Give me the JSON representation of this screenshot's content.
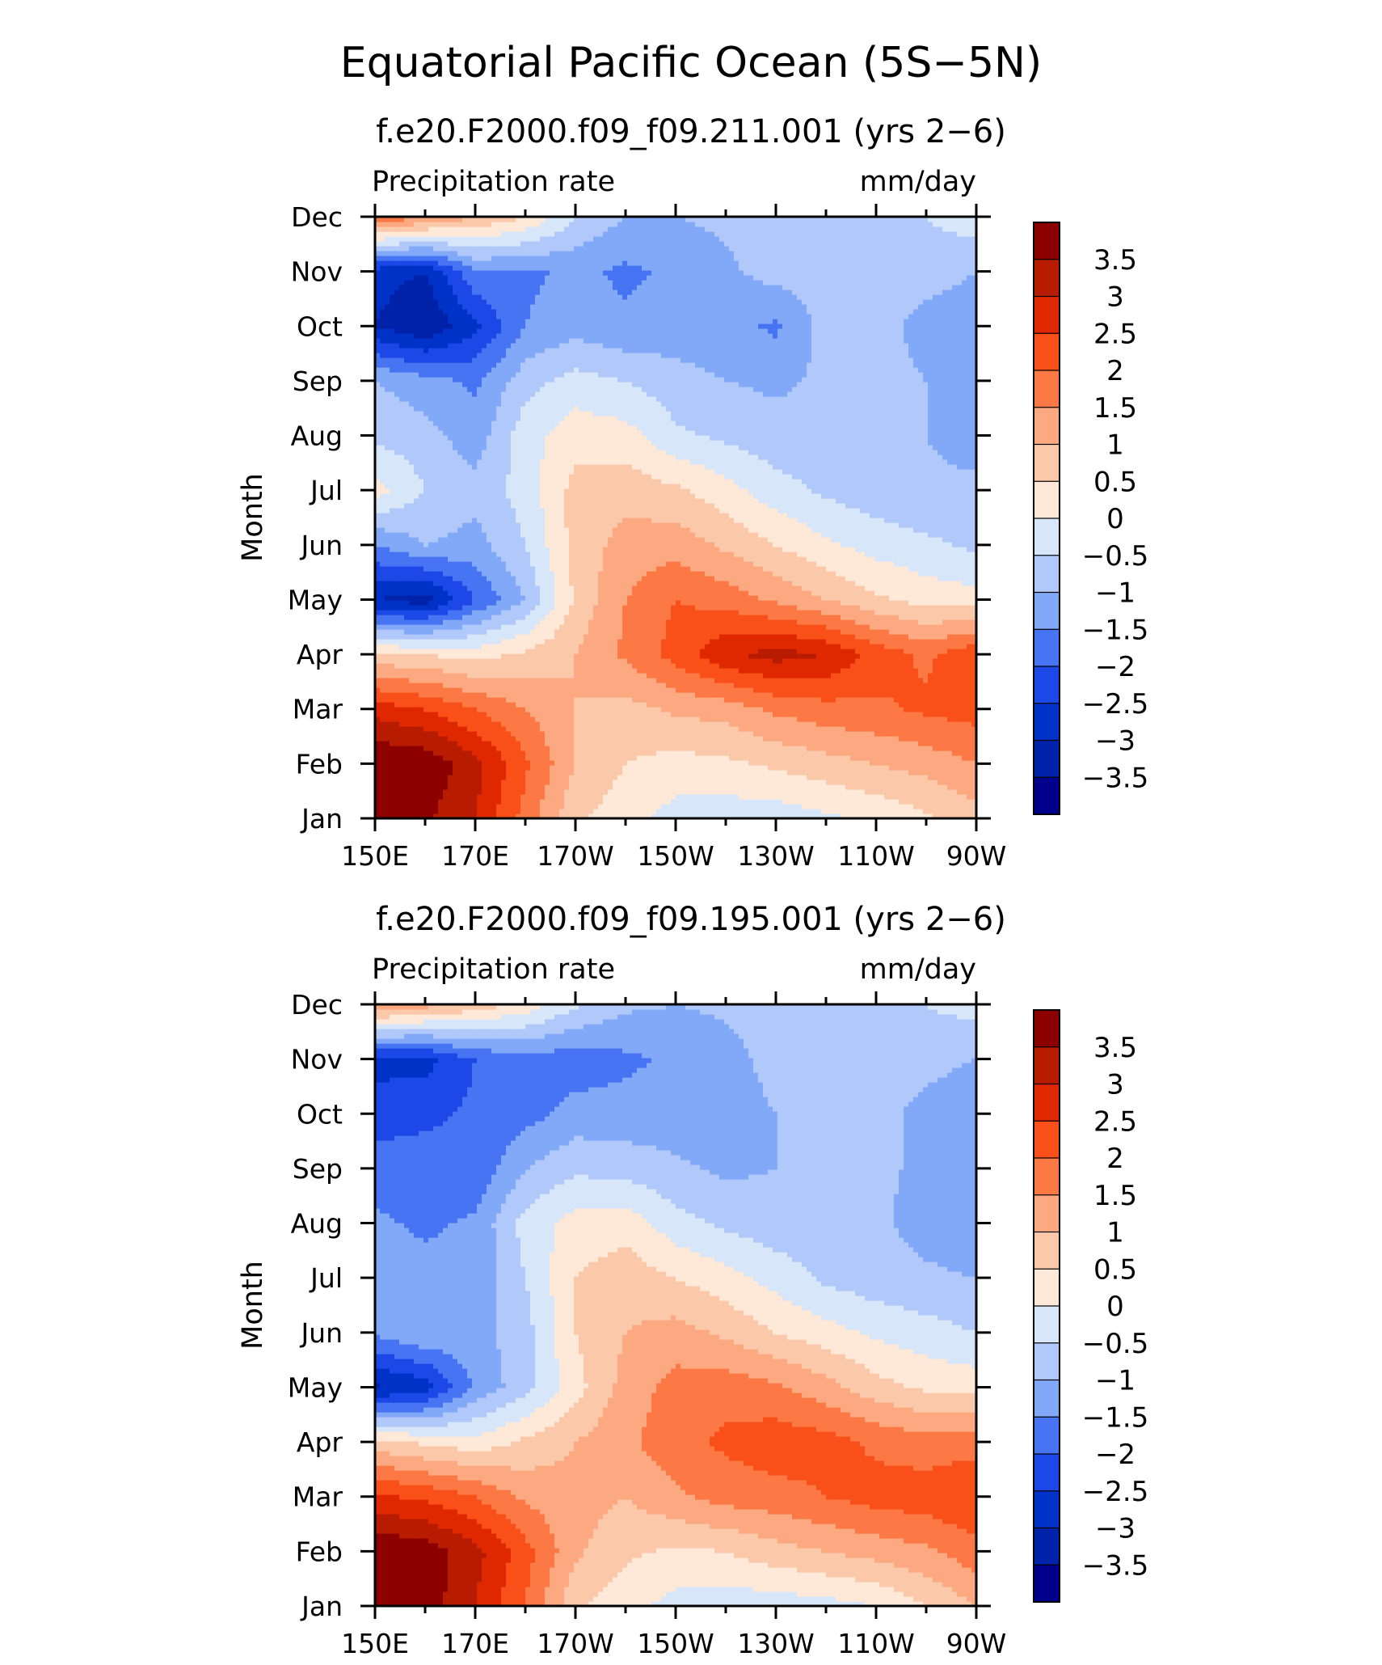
{
  "page_title": "Equatorial Pacific Ocean (5S−5N)",
  "chart_data": [
    {
      "type": "heatmap",
      "title": "f.e20.F2000.f09_f09.211.001 (yrs 2−6)",
      "variable": "Precipitation rate",
      "units": "mm/day",
      "xlabel": "",
      "ylabel": "Month",
      "x_ticks": [
        "150E",
        "170E",
        "170W",
        "150W",
        "130W",
        "110W",
        "90W"
      ],
      "x_lon": [
        150,
        160,
        170,
        180,
        190,
        200,
        210,
        220,
        230,
        240,
        250,
        260,
        270
      ],
      "y_ticks": [
        "Jan",
        "Feb",
        "Mar",
        "Apr",
        "May",
        "Jun",
        "Jul",
        "Aug",
        "Sep",
        "Oct",
        "Nov",
        "Dec"
      ],
      "colorbar_levels": [
        "3.5",
        "3",
        "2.5",
        "2",
        "1.5",
        "1",
        "0.5",
        "0",
        "−0.5",
        "−1",
        "−1.5",
        "−2",
        "−2.5",
        "−3",
        "−3.5"
      ],
      "z": [
        [
          4.0,
          3.6,
          3.0,
          1.8,
          0.6,
          0.2,
          -0.2,
          -0.3,
          -0.3,
          -0.1,
          0.1,
          0.4,
          0.8
        ],
        [
          4.0,
          3.9,
          3.2,
          2.1,
          1.0,
          0.5,
          0.3,
          0.4,
          0.6,
          0.8,
          1.0,
          1.2,
          1.5
        ],
        [
          2.8,
          2.5,
          2.0,
          1.5,
          1.0,
          0.8,
          1.1,
          1.2,
          1.6,
          1.8,
          1.9,
          2.1,
          2.2
        ],
        [
          0.6,
          0.5,
          0.3,
          0.6,
          1.0,
          1.6,
          2.2,
          2.9,
          3.2,
          3.0,
          2.3,
          1.9,
          2.4
        ],
        [
          -3.0,
          -3.3,
          -2.0,
          -1.0,
          0.6,
          1.5,
          2.0,
          1.8,
          1.4,
          1.0,
          0.6,
          0.3,
          0.2
        ],
        [
          -1.5,
          -1.0,
          -1.2,
          -0.5,
          0.7,
          1.2,
          1.3,
          0.9,
          0.5,
          0.1,
          -0.2,
          -0.4,
          -0.6
        ],
        [
          0.2,
          -0.5,
          -0.8,
          -0.3,
          0.7,
          0.8,
          0.6,
          0.2,
          -0.3,
          -0.6,
          -0.8,
          -0.9,
          -0.9
        ],
        [
          -0.6,
          -0.8,
          -1.3,
          -0.2,
          0.3,
          0.2,
          -0.4,
          -0.6,
          -0.8,
          -0.8,
          -0.8,
          -1.0,
          -1.2
        ],
        [
          -1.0,
          -1.3,
          -1.6,
          -0.7,
          -0.3,
          -0.5,
          -0.8,
          -1.0,
          -1.1,
          -0.9,
          -0.8,
          -1.0,
          -1.5
        ],
        [
          -3.0,
          -3.5,
          -2.6,
          -1.5,
          -1.2,
          -1.4,
          -1.3,
          -1.3,
          -1.6,
          -0.8,
          -0.8,
          -1.2,
          -1.3
        ],
        [
          -2.8,
          -3.0,
          -1.6,
          -1.6,
          -1.4,
          -1.6,
          -1.4,
          -1.1,
          -0.8,
          -0.7,
          -0.7,
          -0.8,
          -1.0
        ],
        [
          2.0,
          1.5,
          1.0,
          0.5,
          -0.5,
          -1.0,
          -1.0,
          -0.9,
          -0.8,
          -0.7,
          -0.6,
          -0.5,
          -0.2
        ]
      ]
    },
    {
      "type": "heatmap",
      "title": "f.e20.F2000.f09_f09.195.001 (yrs 2−6)",
      "variable": "Precipitation rate",
      "units": "mm/day",
      "xlabel": "",
      "ylabel": "Month",
      "x_ticks": [
        "150E",
        "170E",
        "170W",
        "150W",
        "130W",
        "110W",
        "90W"
      ],
      "x_lon": [
        150,
        160,
        170,
        180,
        190,
        200,
        210,
        220,
        230,
        240,
        250,
        260,
        270
      ],
      "y_ticks": [
        "Jan",
        "Feb",
        "Mar",
        "Apr",
        "May",
        "Jun",
        "Jul",
        "Aug",
        "Sep",
        "Oct",
        "Nov",
        "Dec"
      ],
      "colorbar_levels": [
        "3.5",
        "3",
        "2.5",
        "2",
        "1.5",
        "1",
        "0.5",
        "0",
        "−0.5",
        "−1",
        "−1.5",
        "−2",
        "−2.5",
        "−3",
        "−3.5"
      ],
      "z": [
        [
          4.0,
          3.8,
          3.0,
          2.0,
          0.6,
          0.2,
          -0.2,
          -0.3,
          -0.3,
          -0.2,
          0.0,
          0.5,
          1.0
        ],
        [
          4.0,
          3.8,
          3.2,
          2.2,
          1.1,
          0.6,
          0.4,
          0.5,
          0.8,
          1.0,
          1.2,
          1.4,
          1.8
        ],
        [
          2.6,
          2.4,
          2.0,
          1.4,
          1.2,
          1.0,
          1.4,
          1.7,
          1.8,
          2.0,
          2.2,
          2.3,
          2.5
        ],
        [
          0.7,
          0.4,
          0.2,
          0.6,
          1.0,
          1.4,
          1.8,
          2.1,
          2.3,
          2.2,
          1.9,
          1.7,
          1.8
        ],
        [
          -3.1,
          -2.8,
          -1.4,
          -0.7,
          0.3,
          1.2,
          1.7,
          1.8,
          1.6,
          1.2,
          0.7,
          0.4,
          0.3
        ],
        [
          -1.4,
          -1.0,
          -1.2,
          -0.7,
          0.5,
          1.0,
          1.2,
          0.9,
          0.5,
          0.2,
          -0.1,
          -0.3,
          -0.5
        ],
        [
          -1.2,
          -1.3,
          -1.4,
          -0.5,
          0.5,
          0.8,
          0.5,
          0.2,
          -0.2,
          -0.6,
          -0.8,
          -0.9,
          -1.0
        ],
        [
          -1.4,
          -1.6,
          -1.4,
          -0.3,
          0.2,
          0.3,
          -0.3,
          -0.6,
          -0.8,
          -0.8,
          -0.9,
          -1.2,
          -1.4
        ],
        [
          -1.8,
          -1.8,
          -1.9,
          -1.0,
          -0.6,
          -0.7,
          -0.9,
          -1.1,
          -1.0,
          -0.9,
          -0.9,
          -1.1,
          -1.5
        ],
        [
          -2.2,
          -2.1,
          -1.9,
          -1.7,
          -1.3,
          -1.3,
          -1.3,
          -1.3,
          -1.0,
          -0.8,
          -0.8,
          -1.2,
          -1.5
        ],
        [
          -2.7,
          -2.7,
          -2.0,
          -1.7,
          -1.8,
          -1.6,
          -1.4,
          -1.2,
          -0.8,
          -0.7,
          -0.7,
          -0.8,
          -1.0
        ],
        [
          1.5,
          1.2,
          0.8,
          0.3,
          -0.4,
          -0.9,
          -1.0,
          -0.9,
          -0.8,
          -0.7,
          -0.6,
          -0.5,
          -0.3
        ]
      ]
    }
  ],
  "colors": {
    "palette": [
      "#00008c",
      "#0022a8",
      "#0032c8",
      "#1c48e8",
      "#4674f2",
      "#82a8f8",
      "#b0c8fa",
      "#d8e6fa",
      "#fee8d8",
      "#fcc8aa",
      "#fca880",
      "#fc7844",
      "#f85018",
      "#e02800",
      "#b81c00",
      "#8c0000"
    ]
  }
}
